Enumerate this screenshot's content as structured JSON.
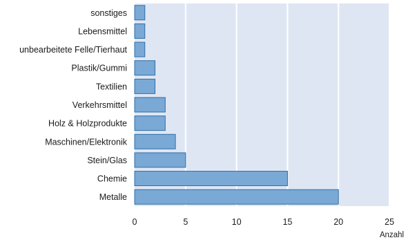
{
  "chart_data": {
    "type": "bar",
    "orientation": "horizontal",
    "categories": [
      "sonstiges",
      "Lebensmittel",
      "unbearbeitete Felle/Tierhaut",
      "Plastik/Gummi",
      "Textilien",
      "Verkehrsmittel",
      "Holz & Holzprodukte",
      "Maschinen/Elektronik",
      "Stein/Glas",
      "Chemie",
      "Metalle"
    ],
    "values": [
      1,
      1,
      1,
      2,
      2,
      3,
      3,
      4,
      5,
      15,
      20
    ],
    "xlabel": "Anzahl",
    "xlim": [
      0,
      25
    ],
    "xticks": [
      0,
      5,
      10,
      15,
      20,
      25
    ],
    "grid": true,
    "colors": {
      "bar_fill": "#7aa9d6",
      "bar_stroke": "#2e6ea6",
      "plot_bg": "#dfe6f3",
      "grid": "#ffffff"
    }
  }
}
